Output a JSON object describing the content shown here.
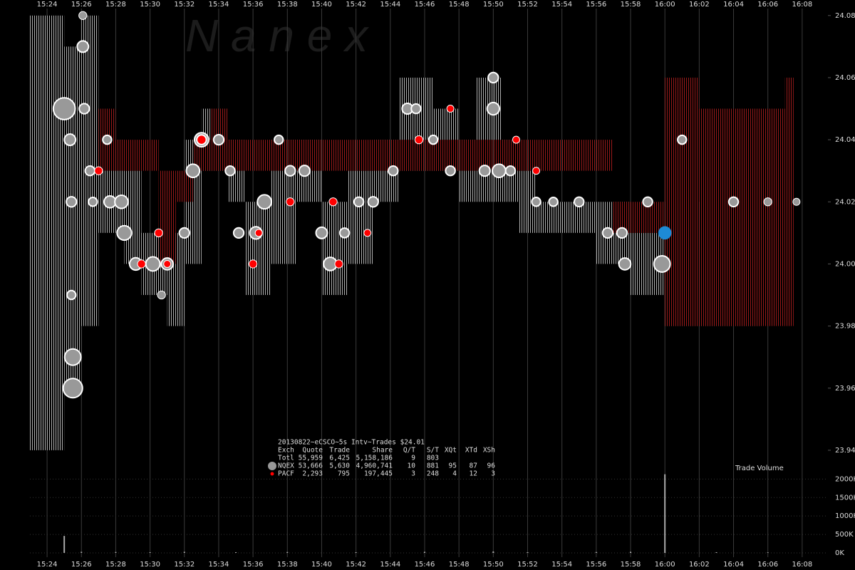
{
  "chart_data": {
    "type": "scatter",
    "watermark": "N a n e x",
    "panel_label": "Trade Volume",
    "title": "20130822~eCSCO~5s Intv~Trades $24.01",
    "xlim": [
      "15:23:00",
      "16:09:30"
    ],
    "xticks": [
      "15:24",
      "15:26",
      "15:28",
      "15:30",
      "15:32",
      "15:34",
      "15:36",
      "15:38",
      "15:40",
      "15:42",
      "15:44",
      "15:46",
      "15:48",
      "15:50",
      "15:52",
      "15:54",
      "15:56",
      "15:58",
      "16:00",
      "16:02",
      "16:04",
      "16:06",
      "16:08"
    ],
    "ylim": [
      23.937,
      24.085
    ],
    "yticks": [
      23.94,
      23.96,
      23.98,
      {
        "value": 24.0,
        "label": "24.00"
      },
      24.02,
      24.04,
      24.06,
      24.08
    ],
    "grid": true,
    "stats": {
      "header": [
        "Exch",
        "Quote",
        "Trade",
        "Share",
        "Q/T",
        "S/T",
        "XQt",
        "XTd",
        "XSh"
      ],
      "total_label": "Totl",
      "totals": [
        "55,959",
        "6,425",
        "5,158,186",
        "9",
        "803"
      ]
    },
    "series": [
      {
        "name": "NQEX",
        "color": "#999999",
        "stats": [
          "53,666",
          "5,630",
          "4,960,741",
          "10",
          "881",
          "95",
          "87",
          "96"
        ],
        "x": [
          "15:25:00",
          "15:25:20",
          "15:25:25",
          "15:25:25",
          "15:25:30",
          "15:25:30",
          "15:26:05",
          "15:26:05",
          "15:26:10",
          "15:26:30",
          "15:26:40",
          "15:27:30",
          "15:27:40",
          "15:28:20",
          "15:28:30",
          "15:29:10",
          "15:30:10",
          "15:30:40",
          "15:31:00",
          "15:32:00",
          "15:32:30",
          "15:33:00",
          "15:34:00",
          "15:34:40",
          "15:35:10",
          "15:36:10",
          "15:36:40",
          "15:37:30",
          "15:38:10",
          "15:39:00",
          "15:40:00",
          "15:40:30",
          "15:41:20",
          "15:42:10",
          "15:43:00",
          "15:44:10",
          "15:45:00",
          "15:45:30",
          "15:46:30",
          "15:47:30",
          "15:49:30",
          "15:50:00",
          "15:50:00",
          "15:50:20",
          "15:51:00",
          "15:52:30",
          "15:53:30",
          "15:55:00",
          "15:56:40",
          "15:57:30",
          "15:57:40",
          "15:59:00",
          "15:59:50",
          "16:01:00",
          "16:04:00",
          "16:06:00",
          "16:07:40"
        ],
        "values": [
          24.05,
          24.04,
          24.02,
          23.99,
          23.97,
          23.96,
          24.07,
          24.08,
          24.05,
          24.03,
          24.02,
          24.04,
          24.02,
          24.02,
          24.01,
          24.0,
          24.0,
          23.99,
          24.0,
          24.01,
          24.03,
          24.04,
          24.04,
          24.03,
          24.01,
          24.01,
          24.02,
          24.04,
          24.03,
          24.03,
          24.01,
          24.0,
          24.01,
          24.02,
          24.02,
          24.03,
          24.05,
          24.05,
          24.04,
          24.03,
          24.03,
          24.05,
          24.06,
          24.03,
          24.03,
          24.02,
          24.02,
          24.02,
          24.01,
          24.01,
          24.0,
          24.02,
          24.0,
          24.04,
          24.02,
          24.02,
          24.02
        ],
        "sizes": [
          40000,
          8000,
          6000,
          4000,
          20000,
          30000,
          8000,
          3000,
          6000,
          5000,
          4000,
          4000,
          9000,
          12000,
          15000,
          10000,
          14000,
          3000,
          9000,
          6000,
          12000,
          14000,
          6000,
          5000,
          6000,
          10000,
          14000,
          4000,
          6000,
          7000,
          8000,
          12000,
          5000,
          5000,
          6000,
          5000,
          7000,
          5000,
          4000,
          5000,
          7000,
          10000,
          6000,
          12000,
          5000,
          4000,
          4000,
          5000,
          6000,
          6000,
          9000,
          5000,
          20000,
          4000,
          5000,
          3000,
          2000
        ]
      },
      {
        "name": "PACF",
        "color": "#ff0000",
        "stats": [
          "2,293",
          "795",
          "197,445",
          "3",
          "248",
          "4",
          "12",
          "3"
        ],
        "x": [
          "15:27:00",
          "15:29:30",
          "15:30:30",
          "15:31:00",
          "15:33:00",
          "15:36:00",
          "15:36:20",
          "15:38:10",
          "15:40:40",
          "15:41:00",
          "15:42:40",
          "15:45:40",
          "15:47:30",
          "15:51:20",
          "15:52:30"
        ],
        "values": [
          24.03,
          24.0,
          24.01,
          24.0,
          24.04,
          24.0,
          24.01,
          24.02,
          24.02,
          24.0,
          24.01,
          24.04,
          24.05,
          24.04,
          24.03
        ],
        "sizes": [
          3000,
          3000,
          3000,
          2000,
          5000,
          3000,
          2000,
          3000,
          3000,
          3000,
          2000,
          3000,
          2000,
          2000,
          2000
        ]
      }
    ],
    "last_trade": {
      "x": "16:00:00",
      "value": 24.01,
      "size": 12000,
      "color": "#1e8ad6"
    },
    "quotes": [
      {
        "color": "#b0b0b0",
        "x": [
          "15:23:00",
          "15:25:00",
          "15:26:00",
          "15:27:00",
          "15:28:30",
          "15:29:30",
          "15:31:00",
          "15:32:00",
          "15:33:00",
          "15:34:30",
          "15:35:30",
          "15:37:00",
          "15:38:30",
          "15:40:00",
          "15:41:30",
          "15:43:00",
          "15:44:30",
          "15:46:30",
          "15:48:00",
          "15:49:00",
          "15:50:30",
          "15:51:30",
          "15:52:30",
          "15:56:00",
          "15:58:00",
          "16:00:00",
          "16:05:00"
        ],
        "low": [
          23.94,
          23.96,
          23.98,
          24.01,
          24.0,
          23.99,
          23.98,
          24.0,
          24.03,
          24.02,
          23.99,
          24.0,
          24.02,
          23.99,
          24.0,
          24.02,
          24.03,
          24.03,
          24.02,
          24.02,
          24.02,
          24.01,
          24.01,
          24.0,
          23.99,
          23.98,
          23.98
        ],
        "high": [
          24.08,
          24.07,
          24.08,
          24.04,
          24.03,
          24.01,
          24.01,
          24.04,
          24.05,
          24.04,
          24.02,
          24.04,
          24.04,
          24.02,
          24.03,
          24.04,
          24.06,
          24.05,
          24.04,
          24.06,
          24.04,
          24.03,
          24.02,
          24.02,
          24.01,
          24.02,
          24.01
        ]
      },
      {
        "color": "#9a1a1a",
        "x": [
          "15:27:00",
          "15:28:00",
          "15:30:30",
          "15:31:30",
          "15:32:30",
          "15:33:30",
          "15:34:30",
          "15:57:00",
          "15:59:00",
          "16:00:00",
          "16:02:00",
          "16:04:00",
          "16:07:00"
        ],
        "low": [
          24.03,
          24.03,
          24.0,
          24.02,
          24.03,
          24.03,
          24.03,
          24.01,
          24.01,
          23.98,
          23.98,
          23.98,
          23.98
        ],
        "high": [
          24.05,
          24.04,
          24.03,
          24.03,
          24.04,
          24.05,
          24.04,
          24.02,
          24.02,
          24.06,
          24.05,
          24.05,
          24.06
        ]
      }
    ],
    "volume": {
      "color": "#aaaaaa",
      "ylim": [
        0,
        2200000
      ],
      "yticks": [
        {
          "value": 0,
          "label": "0K"
        },
        {
          "value": 500000,
          "label": "500K"
        },
        {
          "value": 1000000,
          "label": "1000K"
        },
        {
          "value": 1500000,
          "label": "1500K"
        },
        {
          "value": 2000000,
          "label": "2000K"
        }
      ],
      "x": [
        "15:25:00",
        "15:26:00",
        "15:28:00",
        "15:30:00",
        "15:32:00",
        "15:35:00",
        "15:38:00",
        "15:42:00",
        "15:46:00",
        "15:50:00",
        "15:52:00",
        "15:56:00",
        "15:58:00",
        "16:00:00",
        "16:03:00",
        "16:06:00"
      ],
      "values": [
        460000,
        30000,
        25000,
        20000,
        30000,
        20000,
        25000,
        20000,
        30000,
        40000,
        20000,
        25000,
        30000,
        2130000,
        20000,
        15000
      ]
    }
  }
}
